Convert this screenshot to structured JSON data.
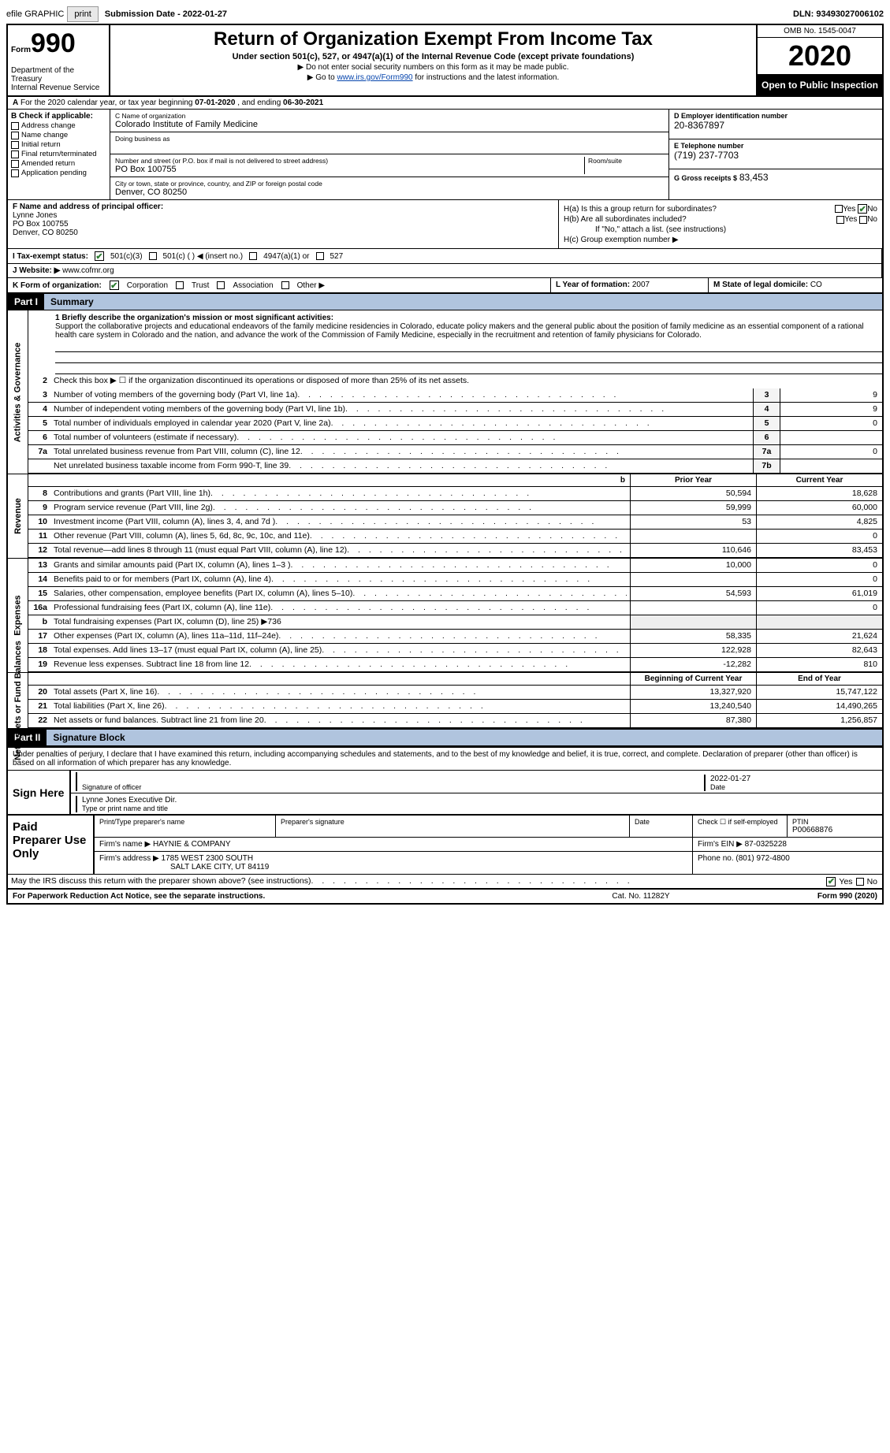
{
  "topbar": {
    "efile_label": "efile GRAPHIC",
    "print_btn": "print",
    "submission_label": "Submission Date - 2022-01-27",
    "dln_label": "DLN: 93493027006102"
  },
  "header": {
    "form_prefix": "Form",
    "form_number": "990",
    "dept1": "Department of the Treasury",
    "dept2": "Internal Revenue Service",
    "title": "Return of Organization Exempt From Income Tax",
    "subtitle": "Under section 501(c), 527, or 4947(a)(1) of the Internal Revenue Code (except private foundations)",
    "note1": "▶ Do not enter social security numbers on this form as it may be made public.",
    "note2_pre": "▶ Go to ",
    "note2_link": "www.irs.gov/Form990",
    "note2_post": " for instructions and the latest information.",
    "omb": "OMB No. 1545-0047",
    "year": "2020",
    "open_public": "Open to Public Inspection"
  },
  "row_a": {
    "prefix": "A",
    "text_a": "For the 2020 calendar year, or tax year beginning ",
    "date1": "07-01-2020",
    "text_b": " , and ending ",
    "date2": "06-30-2021"
  },
  "section_b": {
    "hdr": "B Check if applicable:",
    "opts": [
      "Address change",
      "Name change",
      "Initial return",
      "Final return/terminated",
      "Amended return",
      "Application pending"
    ]
  },
  "section_c": {
    "name_lbl": "C Name of organization",
    "name": "Colorado Institute of Family Medicine",
    "dba_lbl": "Doing business as",
    "dba": "",
    "addr_lbl": "Number and street (or P.O. box if mail is not delivered to street address)",
    "room_lbl": "Room/suite",
    "addr": "PO Box 100755",
    "city_lbl": "City or town, state or province, country, and ZIP or foreign postal code",
    "city": "Denver, CO  80250"
  },
  "section_d": {
    "ein_lbl": "D Employer identification number",
    "ein": "20-8367897",
    "phone_lbl": "E Telephone number",
    "phone": "(719) 237-7703",
    "gross_lbl": "G Gross receipts $",
    "gross": "83,453"
  },
  "section_f": {
    "lbl": "F Name and address of principal officer:",
    "name": "Lynne Jones",
    "addr1": "PO Box 100755",
    "addr2": "Denver, CO  80250"
  },
  "section_h": {
    "ha": "H(a)  Is this a group return for subordinates?",
    "hb": "H(b)  Are all subordinates included?",
    "hb_note": "If \"No,\" attach a list. (see instructions)",
    "hc": "H(c)  Group exemption number ▶",
    "yes": "Yes",
    "no": "No"
  },
  "row_i": {
    "lbl": "I  Tax-exempt status:",
    "o1": "501(c)(3)",
    "o2": "501(c) (   ) ◀ (insert no.)",
    "o3": "4947(a)(1) or",
    "o4": "527"
  },
  "row_j": {
    "lbl": "J  Website: ▶",
    "val": "www.cofmr.org"
  },
  "row_k": {
    "lbl": "K Form of organization:",
    "o1": "Corporation",
    "o2": "Trust",
    "o3": "Association",
    "o4": "Other ▶",
    "l_lbl": "L Year of formation:",
    "l_val": "2007",
    "m_lbl": "M State of legal domicile:",
    "m_val": "CO"
  },
  "part1": {
    "label": "Part I",
    "title": "Summary",
    "sidebar_gov": "Activities & Governance",
    "sidebar_rev": "Revenue",
    "sidebar_exp": "Expenses",
    "sidebar_net": "Net Assets or Fund Balances",
    "line1_lbl": "1  Briefly describe the organization's mission or most significant activities:",
    "line1_text": "Support the collaborative projects and educational endeavors of the family medicine residencies in Colorado, educate policy makers and the general public about the position of family medicine as an essential component of a rational health care system in Colorado and the nation, and advance the work of the Commission of Family Medicine, especially in the recruitment and retention of family physicians for Colorado.",
    "line2": "Check this box ▶ ☐ if the organization discontinued its operations or disposed of more than 25% of its net assets.",
    "gov_rows": [
      {
        "n": "3",
        "d": "Number of voting members of the governing body (Part VI, line 1a)",
        "b": "3",
        "v": "9"
      },
      {
        "n": "4",
        "d": "Number of independent voting members of the governing body (Part VI, line 1b)",
        "b": "4",
        "v": "9"
      },
      {
        "n": "5",
        "d": "Total number of individuals employed in calendar year 2020 (Part V, line 2a)",
        "b": "5",
        "v": "0"
      },
      {
        "n": "6",
        "d": "Total number of volunteers (estimate if necessary)",
        "b": "6",
        "v": ""
      },
      {
        "n": "7a",
        "d": "Total unrelated business revenue from Part VIII, column (C), line 12",
        "b": "7a",
        "v": "0"
      },
      {
        "n": "",
        "d": "Net unrelated business taxable income from Form 990-T, line 39",
        "b": "7b",
        "v": ""
      }
    ],
    "hdr_b": "b",
    "hdr_prior": "Prior Year",
    "hdr_current": "Current Year",
    "rev_rows": [
      {
        "n": "8",
        "d": "Contributions and grants (Part VIII, line 1h)",
        "a": "50,594",
        "b": "18,628"
      },
      {
        "n": "9",
        "d": "Program service revenue (Part VIII, line 2g)",
        "a": "59,999",
        "b": "60,000"
      },
      {
        "n": "10",
        "d": "Investment income (Part VIII, column (A), lines 3, 4, and 7d )",
        "a": "53",
        "b": "4,825"
      },
      {
        "n": "11",
        "d": "Other revenue (Part VIII, column (A), lines 5, 6d, 8c, 9c, 10c, and 11e)",
        "a": "",
        "b": "0"
      },
      {
        "n": "12",
        "d": "Total revenue—add lines 8 through 11 (must equal Part VIII, column (A), line 12)",
        "a": "110,646",
        "b": "83,453"
      }
    ],
    "exp_rows": [
      {
        "n": "13",
        "d": "Grants and similar amounts paid (Part IX, column (A), lines 1–3 )",
        "a": "10,000",
        "b": "0"
      },
      {
        "n": "14",
        "d": "Benefits paid to or for members (Part IX, column (A), line 4)",
        "a": "",
        "b": "0"
      },
      {
        "n": "15",
        "d": "Salaries, other compensation, employee benefits (Part IX, column (A), lines 5–10)",
        "a": "54,593",
        "b": "61,019"
      },
      {
        "n": "16a",
        "d": "Professional fundraising fees (Part IX, column (A), line 11e)",
        "a": "",
        "b": "0"
      },
      {
        "n": "b",
        "d": "Total fundraising expenses (Part IX, column (D), line 25) ▶736",
        "a": "",
        "b": "",
        "noval": true
      },
      {
        "n": "17",
        "d": "Other expenses (Part IX, column (A), lines 11a–11d, 11f–24e)",
        "a": "58,335",
        "b": "21,624"
      },
      {
        "n": "18",
        "d": "Total expenses. Add lines 13–17 (must equal Part IX, column (A), line 25)",
        "a": "122,928",
        "b": "82,643"
      },
      {
        "n": "19",
        "d": "Revenue less expenses. Subtract line 18 from line 12",
        "a": "-12,282",
        "b": "810"
      }
    ],
    "hdr_begin": "Beginning of Current Year",
    "hdr_end": "End of Year",
    "net_rows": [
      {
        "n": "20",
        "d": "Total assets (Part X, line 16)",
        "a": "13,327,920",
        "b": "15,747,122"
      },
      {
        "n": "21",
        "d": "Total liabilities (Part X, line 26)",
        "a": "13,240,540",
        "b": "14,490,265"
      },
      {
        "n": "22",
        "d": "Net assets or fund balances. Subtract line 21 from line 20",
        "a": "87,380",
        "b": "1,256,857"
      }
    ]
  },
  "part2": {
    "label": "Part II",
    "title": "Signature Block",
    "decl": "Under penalties of perjury, I declare that I have examined this return, including accompanying schedules and statements, and to the best of my knowledge and belief, it is true, correct, and complete. Declaration of preparer (other than officer) is based on all information of which preparer has any knowledge.",
    "sign_here": "Sign Here",
    "sig_officer_lbl": "Signature of officer",
    "sig_date": "2022-01-27",
    "date_lbl": "Date",
    "sig_name": "Lynne Jones  Executive Dir.",
    "sig_name_lbl": "Type or print name and title",
    "paid_prep": "Paid Preparer Use Only",
    "prep_name_lbl": "Print/Type preparer's name",
    "prep_sig_lbl": "Preparer's signature",
    "prep_date_lbl": "Date",
    "prep_self_lbl": "Check ☐ if self-employed",
    "ptin_lbl": "PTIN",
    "ptin": "P00668876",
    "firm_name_lbl": "Firm's name    ▶",
    "firm_name": "HAYNIE & COMPANY",
    "firm_ein_lbl": "Firm's EIN ▶",
    "firm_ein": "87-0325228",
    "firm_addr_lbl": "Firm's address ▶",
    "firm_addr1": "1785 WEST 2300 SOUTH",
    "firm_addr2": "SALT LAKE CITY, UT  84119",
    "firm_phone_lbl": "Phone no.",
    "firm_phone": "(801) 972-4800",
    "discuss": "May the IRS discuss this return with the preparer shown above? (see instructions)",
    "yes": "Yes",
    "no": "No"
  },
  "footer": {
    "left": "For Paperwork Reduction Act Notice, see the separate instructions.",
    "mid": "Cat. No. 11282Y",
    "right_pre": "Form ",
    "right_form": "990",
    "right_post": " (2020)"
  }
}
